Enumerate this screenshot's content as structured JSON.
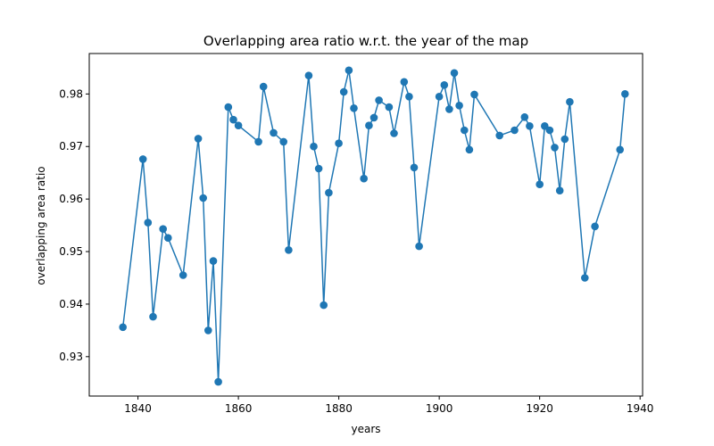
{
  "chart_data": {
    "type": "line",
    "title": "Overlapping area ratio w.r.t. the year of the map",
    "xlabel": "years",
    "ylabel": "overlapping area ratio",
    "xlim": [
      1830.3,
      1940.5
    ],
    "ylim": [
      0.9225,
      0.9877
    ],
    "xticks": [
      1840,
      1860,
      1880,
      1900,
      1920,
      1940
    ],
    "yticks": [
      0.93,
      0.94,
      0.95,
      0.96,
      0.97,
      0.98
    ],
    "xtick_labels": [
      "1840",
      "1860",
      "1880",
      "1900",
      "1920",
      "1940"
    ],
    "ytick_labels": [
      "0.93",
      "0.94",
      "0.95",
      "0.96",
      "0.97",
      "0.98"
    ],
    "grid": false,
    "marker": "circle",
    "color": "#1f77b4",
    "series": [
      {
        "x": [
          1837,
          1841,
          1842,
          1843,
          1845,
          1846,
          1849,
          1852,
          1853,
          1854,
          1855,
          1856,
          1858,
          1859,
          1860,
          1864,
          1865,
          1867,
          1869,
          1870,
          1874,
          1875,
          1876,
          1877,
          1878,
          1880,
          1881,
          1882,
          1883,
          1885,
          1886,
          1887,
          1888,
          1890,
          1891,
          1893,
          1894,
          1895,
          1896,
          1900,
          1901,
          1902,
          1903,
          1904,
          1905,
          1906,
          1907,
          1912,
          1915,
          1917,
          1918,
          1920,
          1921,
          1922,
          1923,
          1924,
          1925,
          1926,
          1929,
          1931,
          1936,
          1937
        ],
        "y": [
          0.9356,
          0.9676,
          0.9555,
          0.9376,
          0.9543,
          0.9526,
          0.9455,
          0.9715,
          0.9602,
          0.935,
          0.9482,
          0.9252,
          0.9775,
          0.9751,
          0.974,
          0.9709,
          0.9814,
          0.9726,
          0.9709,
          0.9503,
          0.9835,
          0.97,
          0.9658,
          0.9398,
          0.9612,
          0.9706,
          0.9804,
          0.9845,
          0.9773,
          0.9639,
          0.974,
          0.9755,
          0.9788,
          0.9775,
          0.9725,
          0.9823,
          0.9795,
          0.966,
          0.951,
          0.9795,
          0.9817,
          0.9771,
          0.984,
          0.9778,
          0.9731,
          0.9694,
          0.9799,
          0.9721,
          0.9731,
          0.9756,
          0.9739,
          0.9628,
          0.9739,
          0.9731,
          0.9698,
          0.9616,
          0.9714,
          0.9785,
          0.945,
          0.9548,
          0.9694,
          0.98
        ]
      }
    ]
  }
}
